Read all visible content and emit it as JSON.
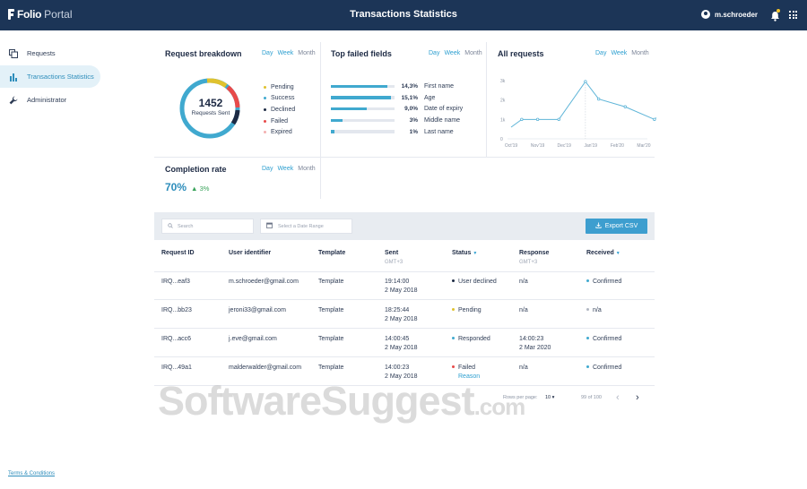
{
  "header": {
    "brand": "Folio",
    "brand_sub": "Portal",
    "title": "Transactions Statistics",
    "user": "m.schroeder"
  },
  "sidebar": {
    "items": [
      {
        "label": "Requests"
      },
      {
        "label": "Transactions Statistics"
      },
      {
        "label": "Administrator"
      }
    ]
  },
  "footer": {
    "terms": "Terms & Conditions"
  },
  "periods": {
    "day": "Day",
    "week": "Week",
    "month": "Month"
  },
  "breakdown": {
    "title": "Request breakdown",
    "total": "1452",
    "total_label": "Requests Sent",
    "legend": [
      {
        "label": "Pending",
        "color": "#e0c22e"
      },
      {
        "label": "Success",
        "color": "#40a9cf"
      },
      {
        "label": "Declined",
        "color": "#1d2a44"
      },
      {
        "label": "Failed",
        "color": "#e84a4a"
      },
      {
        "label": "Expired",
        "color": "#f3b0b0"
      }
    ]
  },
  "failed": {
    "title": "Top failed fields",
    "rows": [
      {
        "pct": "14,3%",
        "name": "First name",
        "value": 14.3
      },
      {
        "pct": "15,1%",
        "name": "Age",
        "value": 15.1
      },
      {
        "pct": "9,0%",
        "name": "Date of expiry",
        "value": 9.0
      },
      {
        "pct": "3%",
        "name": "Middle name",
        "value": 3
      },
      {
        "pct": "1%",
        "name": "Last name",
        "value": 1
      }
    ]
  },
  "all_requests": {
    "title": "All requests",
    "chart_data": {
      "type": "line",
      "categories": [
        "Oct'19",
        "Nov'19",
        "Dec'19",
        "Jan'19",
        "Feb'20",
        "Mar'20"
      ],
      "y_ticks": [
        "3k",
        "2k",
        "1k",
        "0"
      ],
      "ylim": [
        0,
        3000
      ],
      "points": [
        {
          "x": 0,
          "y": 600
        },
        {
          "x": 0.4,
          "y": 1000
        },
        {
          "x": 1,
          "y": 1000
        },
        {
          "x": 1.8,
          "y": 1000
        },
        {
          "x": 2.8,
          "y": 2950
        },
        {
          "x": 3.3,
          "y": 2050
        },
        {
          "x": 4.3,
          "y": 1650
        },
        {
          "x": 5.4,
          "y": 1000
        },
        {
          "x": 5.7,
          "y": 1350
        }
      ],
      "series_color": "#5fb5d8"
    }
  },
  "completion": {
    "title": "Completion rate",
    "value": "70%",
    "delta": "3%"
  },
  "toolbar": {
    "search_placeholder": "Search",
    "date_placeholder": "Select a Date Range",
    "export_label": "Export CSV"
  },
  "table": {
    "headers": {
      "request_id": "Request ID",
      "user_identifier": "User identifier",
      "template": "Template",
      "sent": "Sent",
      "sent_sub": "GMT+3",
      "status": "Status",
      "response": "Response",
      "response_sub": "GMT+3",
      "received": "Received"
    },
    "rows": [
      {
        "id": "IRQ...eaf3",
        "user": "m.schroeder@gmail.com",
        "template": "Template",
        "sent_time": "19:14:00",
        "sent_date": "2 May 2018",
        "status": "User declined",
        "status_color": "#1d2a44",
        "reason": "",
        "resp_time": "n/a",
        "resp_date": "",
        "received": "Confirmed",
        "received_color": "#40a9cf"
      },
      {
        "id": "IRQ...bb23",
        "user": "jeroni33@gmail.com",
        "template": "Template",
        "sent_time": "18:25:44",
        "sent_date": "2 May 2018",
        "status": "Pending",
        "status_color": "#e0c22e",
        "reason": "",
        "resp_time": "n/a",
        "resp_date": "",
        "received": "n/a",
        "received_color": "#b0b6c2"
      },
      {
        "id": "IRQ...acc6",
        "user": "j.eve@gmail.com",
        "template": "Template",
        "sent_time": "14:00:45",
        "sent_date": "2 May 2018",
        "status": "Responded",
        "status_color": "#40a9cf",
        "reason": "",
        "resp_time": "14:00:23",
        "resp_date": "2 Mar 2020",
        "received": "Confirmed",
        "received_color": "#40a9cf"
      },
      {
        "id": "IRQ...49a1",
        "user": "malderwalder@gmail.com",
        "template": "Template",
        "sent_time": "14:00:23",
        "sent_date": "2 May 2018",
        "status": "Failed",
        "status_color": "#e84a4a",
        "reason": "Reason",
        "resp_time": "n/a",
        "resp_date": "",
        "received": "Confirmed",
        "received_color": "#40a9cf"
      }
    ]
  },
  "pagination": {
    "rows_label": "Rows per page:",
    "rows_value": "10",
    "range": "99 of 100"
  },
  "watermark": {
    "main": "SoftwareSuggest",
    "suffix": ".com"
  }
}
